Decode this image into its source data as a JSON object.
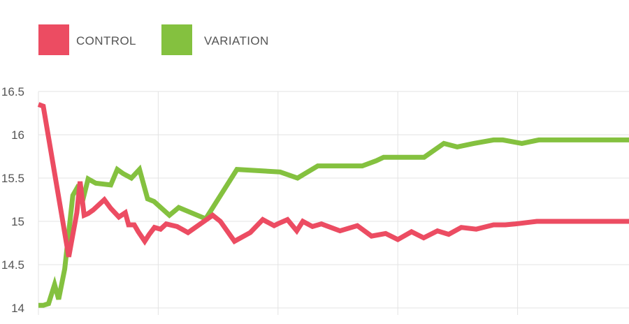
{
  "chart_data": {
    "type": "line",
    "title": "",
    "xlabel": "",
    "ylabel": "",
    "ylim": [
      14,
      16.5
    ],
    "yticks": [
      16.5,
      16,
      15.5,
      15,
      14.5,
      14
    ],
    "ytick_labels": [
      "16.5",
      "16",
      "15.5",
      "15",
      "14.5",
      "14"
    ],
    "x_gridlines": 5,
    "grid": true,
    "legend_position": "top-left",
    "series": [
      {
        "name": "CONTROL",
        "color": "#ec4c62",
        "x": [
          0,
          1.2,
          7.5,
          9.5,
          10.3,
          11.3,
          12.3,
          13.5,
          16.3,
          17.9,
          19.9,
          21.5,
          22.3,
          23.7,
          24.7,
          26.3,
          27.4,
          28.7,
          30.2,
          31.6,
          34.3,
          37.0,
          43.1,
          45.0,
          48.5,
          52.4,
          55.5,
          58.3,
          59.6,
          61.6,
          63.9,
          65.4,
          67.8,
          70.0,
          74.6,
          78.9,
          82.4,
          85.9,
          88.9,
          92.3,
          95.3,
          98.7,
          101.5,
          104.6,
          108.3,
          112.6,
          115.5,
          118.0,
          123.3,
          129.9,
          134.4,
          138.5,
          140.6,
          143.8,
          146.1
        ],
        "values": [
          16.35,
          16.33,
          14.59,
          15.1,
          15.46,
          15.07,
          15.09,
          15.13,
          15.25,
          15.15,
          15.05,
          15.1,
          14.96,
          14.96,
          14.88,
          14.77,
          14.85,
          14.93,
          14.91,
          14.97,
          14.94,
          14.87,
          15.07,
          15.0,
          14.77,
          14.87,
          15.02,
          14.95,
          14.98,
          15.02,
          14.89,
          15.0,
          14.94,
          14.97,
          14.89,
          14.95,
          14.83,
          14.86,
          14.79,
          14.88,
          14.81,
          14.89,
          14.85,
          14.93,
          14.91,
          14.96,
          14.96,
          14.97,
          15.0,
          15.0,
          15.0,
          15.0,
          15.0,
          15.0,
          15.0
        ]
      },
      {
        "name": "VARIATION",
        "color": "#84c13f",
        "x": [
          0,
          1.2,
          2.5,
          4.0,
          5.0,
          6.5,
          8.5,
          9.5,
          11.0,
          12.3,
          14.2,
          17.9,
          19.5,
          21.0,
          23.0,
          25.0,
          27.0,
          28.6,
          32.4,
          34.7,
          41.4,
          49.1,
          59.8,
          64.1,
          69.1,
          74.1,
          77.6,
          80.1,
          83.6,
          85.4,
          88.7,
          92.5,
          95.4,
          100.3,
          103.6,
          107.7,
          112.6,
          114.9,
          119.6,
          123.8,
          133.3,
          146.1
        ],
        "values": [
          14.03,
          14.03,
          14.05,
          14.27,
          14.1,
          14.45,
          15.3,
          15.38,
          15.25,
          15.49,
          15.44,
          15.42,
          15.6,
          15.55,
          15.5,
          15.6,
          15.26,
          15.23,
          15.07,
          15.16,
          15.03,
          15.6,
          15.57,
          15.5,
          15.64,
          15.64,
          15.64,
          15.64,
          15.7,
          15.74,
          15.74,
          15.74,
          15.74,
          15.9,
          15.86,
          15.9,
          15.94,
          15.94,
          15.9,
          15.94,
          15.94,
          15.94
        ]
      }
    ]
  }
}
